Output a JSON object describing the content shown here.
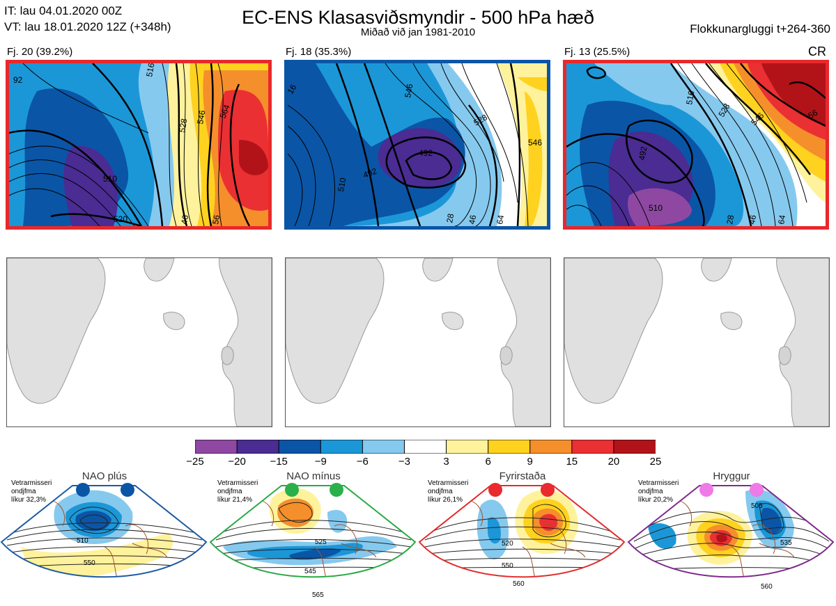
{
  "header": {
    "it_line": "IT: lau 04.01.2020 00Z",
    "vt_line": "VT: lau 18.01.2020 12Z  (+348h)",
    "title": "EC-ENS Klasasviðsmyndir - 500 hPa hæð",
    "subtitle": "Miðað við jan 1981-2010",
    "window": "Flokkunargluggi t+264-360"
  },
  "clusters": [
    {
      "label": "Fj. 20 (39.2%)",
      "border_color": "#e8282b",
      "contours": [
        "92",
        "516",
        "528",
        "546",
        "564",
        "510",
        "520",
        "46",
        "56"
      ]
    },
    {
      "label": "Fj. 18 (35.3%)",
      "border_color": "#0b55a6",
      "contours": [
        "16",
        "546",
        "528",
        "492",
        "492",
        "510",
        "546",
        "28",
        "46",
        "64"
      ]
    },
    {
      "label": "Fj. 13 (25.5%)",
      "border_color": "#e8282b",
      "tag": "CR",
      "contours": [
        "516",
        "528",
        "546",
        "56",
        "492",
        "510",
        "28",
        "46",
        "64"
      ]
    }
  ],
  "colorbar": {
    "colors": [
      "#8e48a2",
      "#4a2c93",
      "#0b55a6",
      "#1b97d8",
      "#86c9ee",
      "#ffffff",
      "#fff29c",
      "#ffd21f",
      "#f58f2b",
      "#ea3033",
      "#b21319"
    ],
    "ticks": [
      "−25",
      "−20",
      "−15",
      "−9",
      "−6",
      "−3",
      "3",
      "6",
      "9",
      "15",
      "20",
      "25"
    ]
  },
  "regimes": [
    {
      "name": "NAO plús",
      "info": [
        "Vetrarmisseri",
        "ondjfma",
        "líkur 32,3%"
      ],
      "border_color": "#1b5aa3",
      "dot_color": "#0b55a6",
      "contours": [
        "510",
        "550"
      ]
    },
    {
      "name": "NAO mínus",
      "info": [
        "Vetrarmisseri",
        "ondjfma",
        "líkur 21,4%"
      ],
      "border_color": "#2aa845",
      "dot_color": "#2ab04a",
      "contours": [
        "525",
        "545",
        "565"
      ]
    },
    {
      "name": "Fyrirstaða",
      "info": [
        "Vetrarmisseri",
        "ondjfma",
        "líkur 26,1%"
      ],
      "border_color": "#e32b2b",
      "dot_color": "#ea2a2e",
      "contours": [
        "520",
        "550",
        "560"
      ]
    },
    {
      "name": "Hryggur",
      "info": [
        "Vetrarmisseri",
        "ondjfma",
        "líkur 20,2%"
      ],
      "border_color": "#7e2a8c",
      "dot_color": "#ee7ae8",
      "contours": [
        "505",
        "535",
        "560"
      ]
    }
  ]
}
